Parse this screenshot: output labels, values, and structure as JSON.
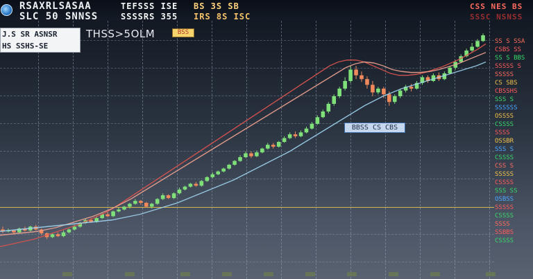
{
  "header": {
    "line1": "RSAXRLSASAA",
    "line2": "SLC 50 SNNSS",
    "ticker_line1": "TEFSSS ISE",
    "ticker_line2": "SSSSRS 355",
    "price_line1": "BS 3S SB",
    "price_line2": "IRS 8S ISC",
    "corner_line1": "CSS NES BS",
    "corner_line2": "SSSC NSNSS"
  },
  "info_panel": {
    "line1": "J.S SR ASNSR",
    "line2": "HS SSHS-SE"
  },
  "title": {
    "label": "THSS>5OLM",
    "badge": "BSS"
  },
  "mid_label": "BBSS CS CBS",
  "right_axis": [
    {
      "text": "SS S SSA",
      "color": "#ff6b5e"
    },
    {
      "text": "CSBS SS",
      "color": "#ff5a5a"
    },
    {
      "text": "SS S BBS",
      "color": "#3ad86a"
    },
    {
      "text": "SSSSS S",
      "color": "#ff5a5a"
    },
    {
      "text": "SSSSS",
      "color": "#ff6b5e"
    },
    {
      "text": "CS SBS",
      "color": "#f2c24a"
    },
    {
      "text": "CBSSHS",
      "color": "#ff5a5a"
    },
    {
      "text": "SSS S",
      "color": "#3ad86a"
    },
    {
      "text": "SSSSSS",
      "color": "#4aa8ff"
    },
    {
      "text": "OSSSS",
      "color": "#f2c24a"
    },
    {
      "text": "CSSSS",
      "color": "#3ad86a"
    },
    {
      "text": "SSSS",
      "color": "#ff5a5a"
    },
    {
      "text": "OSSBR",
      "color": "#f2c24a"
    },
    {
      "text": "SSS S",
      "color": "#4aa8ff"
    },
    {
      "text": "CSSSS",
      "color": "#3ad86a"
    },
    {
      "text": "CSS S",
      "color": "#ff6b5e"
    },
    {
      "text": "SSSSS",
      "color": "#f2c24a"
    },
    {
      "text": "CSSSS",
      "color": "#ff5a5a"
    },
    {
      "text": "SSS SS",
      "color": "#3ad86a"
    },
    {
      "text": "OSBSS",
      "color": "#4aa8ff"
    },
    {
      "text": "SSSSS",
      "color": "#ff5a5a"
    },
    {
      "text": "CSSSS",
      "color": "#3ad86a"
    },
    {
      "text": "SSSS",
      "color": "#ff6b5e"
    },
    {
      "text": "SSBBS",
      "color": "#ff5a5a"
    },
    {
      "text": "CSSSS",
      "color": "#3ad86a"
    }
  ],
  "colors": {
    "up": "#7fe07a",
    "down": "#f08a5d",
    "ma_red": "#d9534f",
    "ma_light": "#f0a290",
    "ma_blue": "#9fd4f0",
    "accent_yellow": "#d6b84a"
  },
  "chart_data": {
    "type": "candlestick",
    "title": "THSS>5OLM",
    "series": [
      {
        "name": "price",
        "kind": "candles",
        "values": [
          [
            28,
            26,
            31,
            24
          ],
          [
            26,
            27,
            29,
            25
          ],
          [
            27,
            25,
            28,
            23
          ],
          [
            25,
            29,
            30,
            24
          ],
          [
            29,
            27,
            31,
            26
          ],
          [
            27,
            31,
            32,
            26
          ],
          [
            31,
            28,
            33,
            27
          ],
          [
            28,
            24,
            29,
            22
          ],
          [
            24,
            20,
            25,
            18
          ],
          [
            20,
            23,
            24,
            19
          ],
          [
            23,
            21,
            25,
            20
          ],
          [
            21,
            25,
            27,
            20
          ],
          [
            25,
            28,
            29,
            24
          ],
          [
            28,
            31,
            33,
            27
          ],
          [
            31,
            35,
            36,
            30
          ],
          [
            35,
            38,
            40,
            34
          ],
          [
            38,
            36,
            40,
            35
          ],
          [
            36,
            40,
            42,
            35
          ],
          [
            40,
            44,
            45,
            39
          ],
          [
            44,
            42,
            46,
            41
          ],
          [
            42,
            47,
            48,
            41
          ],
          [
            47,
            49,
            51,
            46
          ],
          [
            49,
            52,
            53,
            48
          ],
          [
            52,
            55,
            56,
            50
          ],
          [
            55,
            58,
            60,
            54
          ],
          [
            58,
            56,
            59,
            54
          ],
          [
            56,
            52,
            57,
            51
          ],
          [
            52,
            55,
            56,
            50
          ],
          [
            55,
            60,
            61,
            54
          ],
          [
            60,
            64,
            66,
            59
          ],
          [
            64,
            61,
            65,
            60
          ],
          [
            61,
            66,
            67,
            60
          ],
          [
            66,
            70,
            72,
            65
          ],
          [
            70,
            73,
            74,
            69
          ],
          [
            73,
            76,
            77,
            72
          ],
          [
            76,
            74,
            78,
            73
          ],
          [
            74,
            79,
            80,
            73
          ],
          [
            79,
            83,
            84,
            78
          ],
          [
            83,
            86,
            88,
            82
          ],
          [
            86,
            89,
            90,
            85
          ],
          [
            89,
            92,
            93,
            88
          ],
          [
            92,
            96,
            97,
            91
          ],
          [
            96,
            100,
            101,
            95
          ],
          [
            100,
            104,
            106,
            99
          ],
          [
            104,
            108,
            110,
            103
          ],
          [
            108,
            105,
            110,
            103
          ],
          [
            105,
            109,
            111,
            104
          ],
          [
            109,
            113,
            114,
            108
          ],
          [
            113,
            117,
            119,
            112
          ],
          [
            117,
            115,
            119,
            113
          ],
          [
            115,
            120,
            121,
            114
          ],
          [
            120,
            124,
            126,
            119
          ],
          [
            124,
            128,
            130,
            123
          ],
          [
            128,
            126,
            131,
            124
          ],
          [
            126,
            130,
            132,
            125
          ],
          [
            130,
            134,
            136,
            129
          ],
          [
            134,
            139,
            141,
            133
          ],
          [
            139,
            146,
            148,
            138
          ],
          [
            146,
            152,
            154,
            145
          ],
          [
            152,
            160,
            162,
            150
          ],
          [
            160,
            168,
            170,
            158
          ],
          [
            168,
            176,
            178,
            166
          ],
          [
            176,
            184,
            188,
            174
          ],
          [
            184,
            196,
            200,
            182
          ],
          [
            196,
            190,
            200,
            186
          ],
          [
            190,
            186,
            194,
            183
          ],
          [
            186,
            180,
            189,
            176
          ],
          [
            180,
            172,
            184,
            168
          ],
          [
            172,
            176,
            178,
            170
          ],
          [
            176,
            170,
            178,
            166
          ],
          [
            170,
            162,
            173,
            158
          ],
          [
            162,
            168,
            170,
            160
          ],
          [
            168,
            174,
            176,
            166
          ],
          [
            174,
            178,
            180,
            172
          ],
          [
            178,
            176,
            181,
            173
          ],
          [
            176,
            182,
            184,
            175
          ],
          [
            182,
            188,
            190,
            180
          ],
          [
            188,
            184,
            190,
            182
          ],
          [
            184,
            190,
            192,
            183
          ],
          [
            190,
            186,
            193,
            184
          ],
          [
            186,
            192,
            194,
            185
          ],
          [
            192,
            198,
            200,
            191
          ],
          [
            198,
            204,
            206,
            196
          ],
          [
            204,
            210,
            212,
            203
          ],
          [
            210,
            216,
            218,
            209
          ],
          [
            216,
            220,
            224,
            214
          ],
          [
            220,
            226,
            228,
            219
          ],
          [
            226,
            232,
            234,
            225
          ]
        ]
      },
      {
        "name": "ma_red",
        "kind": "line",
        "values": [
          10,
          12,
          14,
          16,
          18,
          21,
          24,
          27,
          30,
          33,
          37,
          41,
          45,
          50,
          56,
          62,
          68,
          74,
          80,
          86,
          92,
          98,
          104,
          110,
          116,
          122,
          128,
          134,
          140,
          146,
          152,
          158,
          164,
          170,
          176,
          182,
          188,
          194,
          200,
          204,
          206,
          206,
          204,
          200,
          196,
          192,
          190,
          190,
          191,
          193,
          196,
          199,
          203,
          207,
          212,
          217,
          223
        ]
      },
      {
        "name": "ma_light",
        "kind": "line",
        "values": [
          22,
          23,
          24,
          25,
          26,
          28,
          30,
          33,
          36,
          39,
          42,
          46,
          50,
          55,
          60,
          66,
          72,
          78,
          84,
          90,
          96,
          102,
          108,
          114,
          120,
          126,
          132,
          138,
          144,
          150,
          156,
          162,
          168,
          174,
          180,
          186,
          192,
          198,
          202,
          204,
          203,
          200,
          196,
          194,
          193,
          193,
          194,
          196,
          199,
          202,
          206,
          210,
          214
        ]
      },
      {
        "name": "ma_blue",
        "kind": "line",
        "values": [
          26,
          27,
          28,
          29,
          30,
          31,
          32,
          33,
          34,
          35,
          36,
          37,
          38,
          40,
          42,
          44,
          47,
          50,
          53,
          56,
          60,
          64,
          68,
          72,
          76,
          80,
          85,
          90,
          95,
          100,
          105,
          110,
          116,
          122,
          128,
          134,
          140,
          146,
          152,
          158,
          163,
          168,
          172,
          176,
          179,
          182,
          185,
          188,
          191,
          194,
          197,
          200,
          204
        ]
      }
    ],
    "ylim": [
      0,
      240
    ],
    "grid": true
  }
}
